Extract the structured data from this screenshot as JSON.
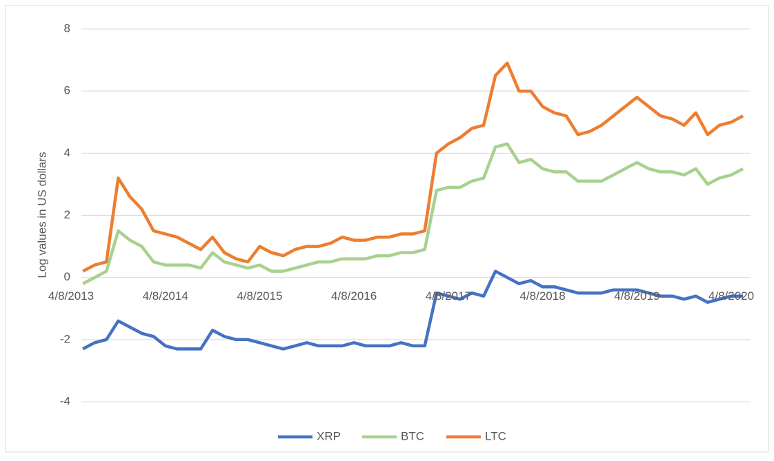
{
  "chart_data": {
    "type": "line",
    "ylabel": "Log values in US dollars",
    "categories": [
      "4/8/2013",
      null,
      null,
      null,
      null,
      null,
      null,
      null,
      "4/8/2014",
      null,
      null,
      null,
      null,
      null,
      null,
      null,
      "4/8/2015",
      null,
      null,
      null,
      null,
      null,
      null,
      null,
      "4/8/2016",
      null,
      null,
      null,
      null,
      null,
      null,
      null,
      "4/8/2017",
      null,
      null,
      null,
      null,
      null,
      null,
      null,
      "4/8/2018",
      null,
      null,
      null,
      null,
      null,
      null,
      null,
      "4/8/2019",
      null,
      null,
      null,
      null,
      null,
      null,
      null,
      "4/8/2020",
      null
    ],
    "series": [
      {
        "name": "XRP",
        "color": "#4472c4",
        "values": [
          null,
          -2.3,
          -2.1,
          -2.0,
          -1.4,
          -1.6,
          -1.8,
          -1.9,
          -2.2,
          -2.3,
          -2.3,
          -2.3,
          -1.7,
          -1.9,
          -2.0,
          -2.0,
          -2.1,
          -2.2,
          -2.3,
          -2.2,
          -2.1,
          -2.2,
          -2.2,
          -2.2,
          -2.1,
          -2.2,
          -2.2,
          -2.2,
          -2.1,
          -2.2,
          -2.2,
          -0.5,
          -0.6,
          -0.7,
          -0.5,
          -0.6,
          0.2,
          0.0,
          -0.2,
          -0.1,
          -0.3,
          -0.3,
          -0.4,
          -0.5,
          -0.5,
          -0.5,
          -0.4,
          -0.4,
          -0.4,
          -0.5,
          -0.6,
          -0.6,
          -0.7,
          -0.6,
          -0.8,
          -0.7,
          -0.6,
          -0.6
        ]
      },
      {
        "name": "BTC",
        "color": "#a9d18e",
        "values": [
          null,
          -0.2,
          0.0,
          0.2,
          1.5,
          1.2,
          1.0,
          0.5,
          0.4,
          0.4,
          0.4,
          0.3,
          0.8,
          0.5,
          0.4,
          0.3,
          0.4,
          0.2,
          0.2,
          0.3,
          0.4,
          0.5,
          0.5,
          0.6,
          0.6,
          0.6,
          0.7,
          0.7,
          0.8,
          0.8,
          0.9,
          2.8,
          2.9,
          2.9,
          3.1,
          3.2,
          4.2,
          4.3,
          3.7,
          3.8,
          3.5,
          3.4,
          3.4,
          3.1,
          3.1,
          3.1,
          3.3,
          3.5,
          3.7,
          3.5,
          3.4,
          3.4,
          3.3,
          3.5,
          3.0,
          3.2,
          3.3,
          3.5
        ]
      },
      {
        "name": "LTC",
        "color": "#ed7d31",
        "values": [
          null,
          0.2,
          0.4,
          0.5,
          3.2,
          2.6,
          2.2,
          1.5,
          1.4,
          1.3,
          1.1,
          0.9,
          1.3,
          0.8,
          0.6,
          0.5,
          1.0,
          0.8,
          0.7,
          0.9,
          1.0,
          1.0,
          1.1,
          1.3,
          1.2,
          1.2,
          1.3,
          1.3,
          1.4,
          1.4,
          1.5,
          4.0,
          4.3,
          4.5,
          4.8,
          4.9,
          6.5,
          6.9,
          6.0,
          6.0,
          5.5,
          5.3,
          5.2,
          4.6,
          4.7,
          4.9,
          5.2,
          5.5,
          5.8,
          5.5,
          5.2,
          5.1,
          4.9,
          5.3,
          4.6,
          4.9,
          5.0,
          5.2
        ]
      }
    ],
    "ylim": [
      -4,
      8
    ],
    "yticks": [
      -4,
      -2,
      0,
      2,
      4,
      6,
      8
    ],
    "grid": true,
    "legend": "bottom"
  }
}
